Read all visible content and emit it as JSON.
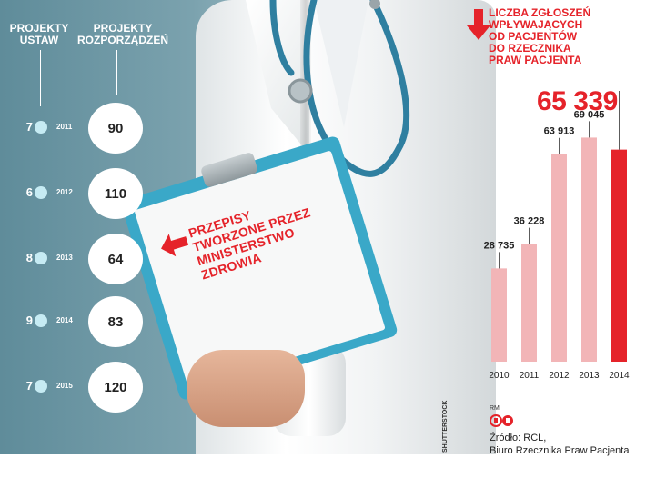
{
  "left_panel": {
    "col1_header": [
      "PROJEKTY",
      "USTAW"
    ],
    "col2_header": [
      "PROJEKTY",
      "ROZPORZĄDZEŃ"
    ],
    "rows": [
      {
        "year": "2011",
        "ustaw": "7",
        "rozporzadzen": "90"
      },
      {
        "year": "2012",
        "ustaw": "6",
        "rozporzadzen": "110"
      },
      {
        "year": "2013",
        "ustaw": "8",
        "rozporzadzen": "64"
      },
      {
        "year": "2014",
        "ustaw": "9",
        "rozporzadzen": "83"
      },
      {
        "year": "2015",
        "ustaw": "7",
        "rozporzadzen": "120"
      }
    ]
  },
  "clipboard": {
    "lines": [
      "PRZEPISY",
      "TWORZONE PRZEZ",
      "MINISTERSTWO",
      "ZDROWIA"
    ]
  },
  "chart_title_lines": [
    "LICZBA ZGŁOSZEŃ",
    "WPŁYWAJĄCYCH",
    "OD PACJENTÓW",
    "DO RZECZNIKA",
    "PRAW PACJENTA"
  ],
  "highlight_value": "65 339",
  "chart_data": {
    "type": "bar",
    "categories": [
      "2010",
      "2011",
      "2012",
      "2013",
      "2014"
    ],
    "values": [
      28735,
      36228,
      63913,
      69045,
      65339
    ],
    "value_labels": [
      "28 735",
      "36 228",
      "63 913",
      "69 045",
      ""
    ],
    "title": "LICZBA ZGŁOSZEŃ WPŁYWAJĄCYCH OD PACJENTÓW DO RZECZNIKA PRAW PACJENTA",
    "highlight_index": 4,
    "ylim": [
      0,
      70000
    ],
    "colors": {
      "bar": "#f2b5b7",
      "highlight": "#e5232a"
    }
  },
  "credits": {
    "photo": "SHUTTERSTOCK",
    "author": "RM",
    "source_lines": [
      "Źródło: RCL,",
      "Biuro Rzecznika Praw Pacjenta"
    ]
  },
  "colors": {
    "accent_red": "#e5232a",
    "teal": "#6f98a5",
    "clipboard_blue": "#3aa8c8",
    "dot": "#c6ebf3"
  }
}
